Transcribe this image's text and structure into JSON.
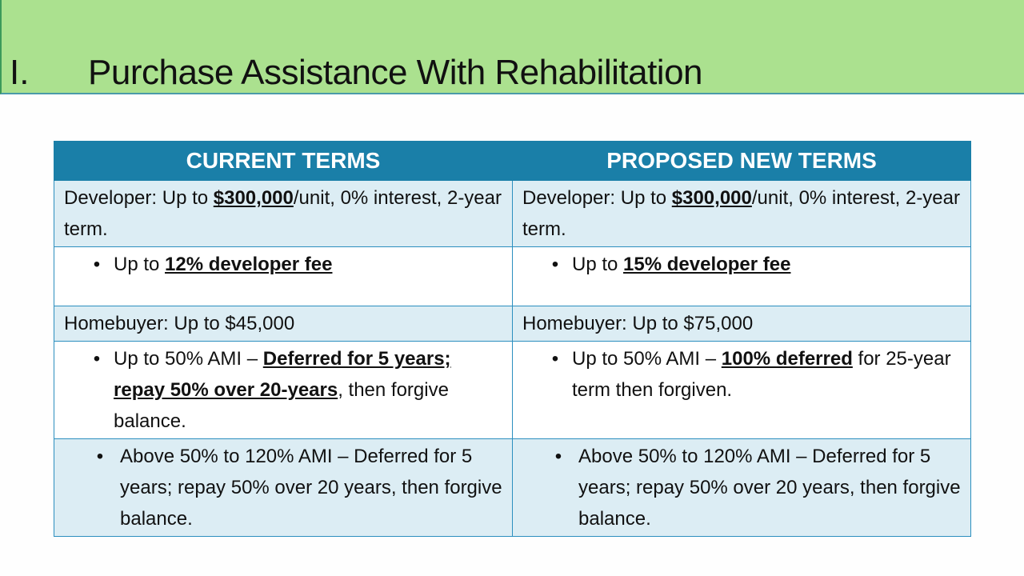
{
  "slide": {
    "number": "I.",
    "title": "Purchase Assistance With Rehabilitation"
  },
  "table": {
    "headers": [
      "CURRENT TERMS",
      "PROPOSED NEW TERMS"
    ],
    "rows": [
      [
        [
          {
            "t": "Developer: Up to "
          },
          {
            "t": "$300,000",
            "b": true
          },
          {
            "t": "/unit, 0% interest, 2-year term."
          }
        ],
        [
          {
            "t": "Developer: Up to "
          },
          {
            "t": "$300,000",
            "b": true
          },
          {
            "t": "/unit, 0% interest, 2-year term."
          }
        ]
      ],
      [
        [
          {
            "t": "Up to "
          },
          {
            "t": "12% developer fee",
            "b": true
          }
        ],
        [
          {
            "t": "Up to "
          },
          {
            "t": "15% developer fee",
            "b": true
          }
        ]
      ],
      [
        [
          {
            "t": "Homebuyer: Up to $45,000"
          }
        ],
        [
          {
            "t": "Homebuyer: Up to $75,000"
          }
        ]
      ],
      [
        [
          {
            "t": "Up to 50% AMI – "
          },
          {
            "t": "Deferred for 5 years; repay 50% over 20-years",
            "b": true
          },
          {
            "t": ", then forgive balance."
          }
        ],
        [
          {
            "t": "Up to 50% AMI – "
          },
          {
            "t": "100% deferred",
            "b": true
          },
          {
            "t": " for 25-year term then forgiven."
          }
        ]
      ],
      [
        [
          {
            "t": "Above 50% to 120% AMI  – Deferred for 5 years; repay 50% over 20 years, then forgive balance."
          }
        ],
        [
          {
            "t": "Above 50% to 120% AMI – Deferred for 5 years; repay 50% over 20 years, then forgive balance."
          }
        ]
      ]
    ],
    "bulleted_rows": [
      1,
      3,
      4
    ],
    "bullet": "•"
  },
  "colors": {
    "title_bar": "#abe18f",
    "header": "#1a7fa8",
    "row_alt": "#dcedf4"
  }
}
